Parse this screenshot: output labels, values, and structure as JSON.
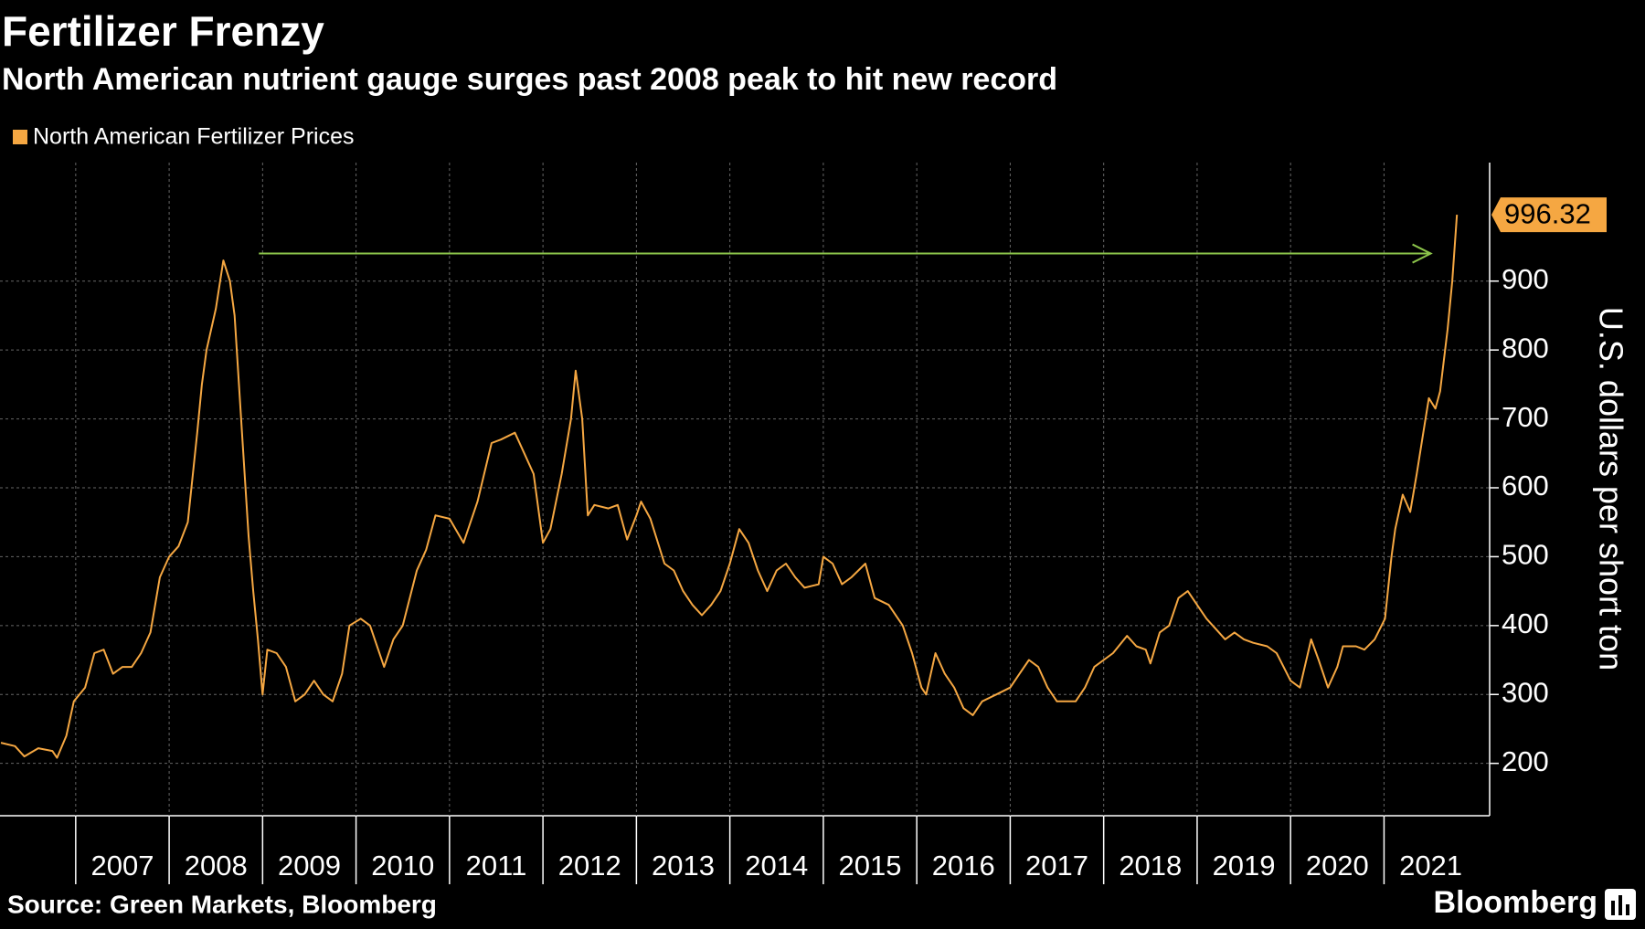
{
  "chart_data": {
    "type": "line",
    "title": "Fertilizer Frenzy",
    "subtitle": "North American nutrient gauge surges past 2008 peak to hit new record",
    "y_label": "U.S. dollars per short ton",
    "source": "Source: Green Markets, Bloomberg",
    "brand": "Bloomberg",
    "legend": "top-left",
    "grid": true,
    "xlim": [
      2006.19,
      2022.13
    ],
    "xticks": [
      2007,
      2008,
      2009,
      2010,
      2011,
      2012,
      2013,
      2014,
      2015,
      2016,
      2017,
      2018,
      2019,
      2020,
      2021
    ],
    "ylim": [
      124,
      1072
    ],
    "yticks": [
      200,
      300,
      400,
      500,
      600,
      700,
      800,
      900
    ],
    "arrow": {
      "y": 940,
      "x": [
        2008.96,
        2021.5
      ],
      "color": "#8bc34a"
    },
    "x": [
      2006.2,
      2006.35,
      2006.45,
      2006.6,
      2006.75,
      2006.8,
      2006.9,
      2006.98,
      2007.1,
      2007.2,
      2007.3,
      2007.4,
      2007.5,
      2007.6,
      2007.7,
      2007.8,
      2007.9,
      2008.0,
      2008.1,
      2008.2,
      2008.3,
      2008.35,
      2008.4,
      2008.5,
      2008.58,
      2008.65,
      2008.7,
      2008.78,
      2008.85,
      2008.9,
      2008.95,
      2009.0,
      2009.05,
      2009.15,
      2009.25,
      2009.35,
      2009.45,
      2009.55,
      2009.65,
      2009.75,
      2009.85,
      2009.93,
      2010.05,
      2010.15,
      2010.3,
      2010.4,
      2010.5,
      2010.65,
      2010.75,
      2010.85,
      2011.0,
      2011.15,
      2011.3,
      2011.45,
      2011.55,
      2011.7,
      2011.8,
      2011.9,
      2012.0,
      2012.08,
      2012.2,
      2012.3,
      2012.35,
      2012.42,
      2012.48,
      2012.55,
      2012.7,
      2012.8,
      2012.9,
      2013.0,
      2013.05,
      2013.15,
      2013.3,
      2013.4,
      2013.5,
      2013.6,
      2013.7,
      2013.8,
      2013.9,
      2014.0,
      2014.1,
      2014.2,
      2014.3,
      2014.4,
      2014.5,
      2014.6,
      2014.7,
      2014.8,
      2014.95,
      2015.0,
      2015.1,
      2015.2,
      2015.3,
      2015.45,
      2015.55,
      2015.7,
      2015.85,
      2015.95,
      2016.05,
      2016.1,
      2016.2,
      2016.3,
      2016.4,
      2016.5,
      2016.6,
      2016.7,
      2016.85,
      2017.0,
      2017.1,
      2017.2,
      2017.3,
      2017.4,
      2017.5,
      2017.7,
      2017.8,
      2017.9,
      2018.0,
      2018.1,
      2018.25,
      2018.35,
      2018.45,
      2018.5,
      2018.6,
      2018.7,
      2018.8,
      2018.9,
      2019.0,
      2019.1,
      2019.2,
      2019.3,
      2019.4,
      2019.5,
      2019.6,
      2019.75,
      2019.85,
      2020.0,
      2020.1,
      2020.22,
      2020.3,
      2020.4,
      2020.5,
      2020.56,
      2020.7,
      2020.79,
      2020.9,
      2021.01,
      2021.08,
      2021.12,
      2021.2,
      2021.28,
      2021.35,
      2021.42,
      2021.48,
      2021.55,
      2021.6,
      2021.68,
      2021.73,
      2021.78
    ],
    "series": [
      {
        "name": "North American Fertilizer Prices",
        "color": "#f5a742",
        "values": [
          230,
          225,
          210,
          222,
          218,
          208,
          240,
          290,
          310,
          360,
          365,
          330,
          340,
          340,
          360,
          390,
          470,
          500,
          515,
          550,
          680,
          750,
          800,
          860,
          930,
          900,
          850,
          680,
          530,
          450,
          380,
          300,
          365,
          360,
          340,
          290,
          300,
          320,
          300,
          290,
          330,
          400,
          410,
          400,
          340,
          380,
          400,
          480,
          510,
          560,
          555,
          520,
          580,
          665,
          670,
          680,
          650,
          620,
          520,
          540,
          620,
          700,
          770,
          700,
          560,
          575,
          570,
          575,
          525,
          560,
          580,
          555,
          490,
          480,
          450,
          430,
          415,
          430,
          450,
          490,
          540,
          520,
          480,
          450,
          480,
          490,
          470,
          455,
          460,
          500,
          490,
          460,
          470,
          490,
          440,
          430,
          400,
          360,
          310,
          300,
          360,
          330,
          310,
          280,
          270,
          290,
          300,
          310,
          330,
          350,
          340,
          310,
          290,
          290,
          310,
          340,
          350,
          360,
          385,
          370,
          365,
          345,
          390,
          400,
          440,
          450,
          430,
          410,
          395,
          380,
          390,
          380,
          375,
          370,
          360,
          320,
          310,
          380,
          350,
          310,
          340,
          370,
          370,
          365,
          380,
          410,
          500,
          540,
          590,
          565,
          620,
          680,
          730,
          715,
          740,
          830,
          900,
          996.32
        ]
      }
    ]
  }
}
